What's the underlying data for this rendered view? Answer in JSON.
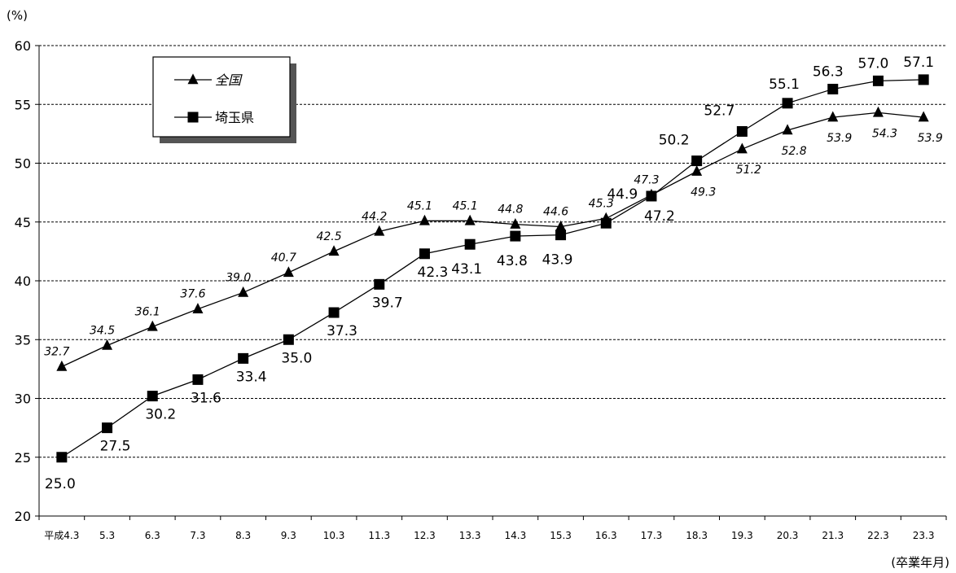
{
  "chart_data": {
    "type": "line",
    "y_unit": "(%)",
    "x_unit": "(卒業年月)",
    "ylim": [
      20,
      60
    ],
    "yticks": [
      20,
      25,
      30,
      35,
      40,
      45,
      50,
      55,
      60
    ],
    "grid": "horizontal dashed",
    "legend_position": "top-left",
    "categories": [
      "平成4.3",
      "5.3",
      "6.3",
      "7.3",
      "8.3",
      "9.3",
      "10.3",
      "11.3",
      "12.3",
      "13.3",
      "14.3",
      "15.3",
      "16.3",
      "17.3",
      "18.3",
      "19.3",
      "20.3",
      "21.3",
      "22.3",
      "23.3"
    ],
    "series": [
      {
        "name": "全国",
        "marker": "triangle",
        "label_style": "italic",
        "values": [
          32.7,
          34.5,
          36.1,
          37.6,
          39.0,
          40.7,
          42.5,
          44.2,
          45.1,
          45.1,
          44.8,
          44.6,
          45.3,
          47.3,
          49.3,
          51.2,
          52.8,
          53.9,
          54.3,
          53.9
        ],
        "labels": [
          "32.7",
          "34.5",
          "36.1",
          "37.6",
          "39.0",
          "40.7",
          "42.5",
          "44.2",
          "45.1",
          "45.1",
          "44.8",
          "44.6",
          "45.3",
          "47.3",
          "49.3",
          "51.2",
          "52.8",
          "53.9",
          "54.3",
          "53.9"
        ]
      },
      {
        "name": "埼玉県",
        "marker": "square",
        "label_style": "normal",
        "values": [
          25.0,
          27.5,
          30.2,
          31.6,
          33.4,
          35.0,
          37.3,
          39.7,
          42.3,
          43.1,
          43.8,
          43.9,
          44.9,
          47.2,
          50.2,
          52.7,
          55.1,
          56.3,
          57.0,
          57.1
        ],
        "labels": [
          "25.0",
          "27.5",
          "30.2",
          "31.6",
          "33.4",
          "35.0",
          "37.3",
          "39.7",
          "42.3",
          "43.1",
          "43.8",
          "43.9",
          "44.9",
          "47.2",
          "50.2",
          "52.7",
          "55.1",
          "56.3",
          "57.0",
          "57.1"
        ]
      }
    ]
  }
}
